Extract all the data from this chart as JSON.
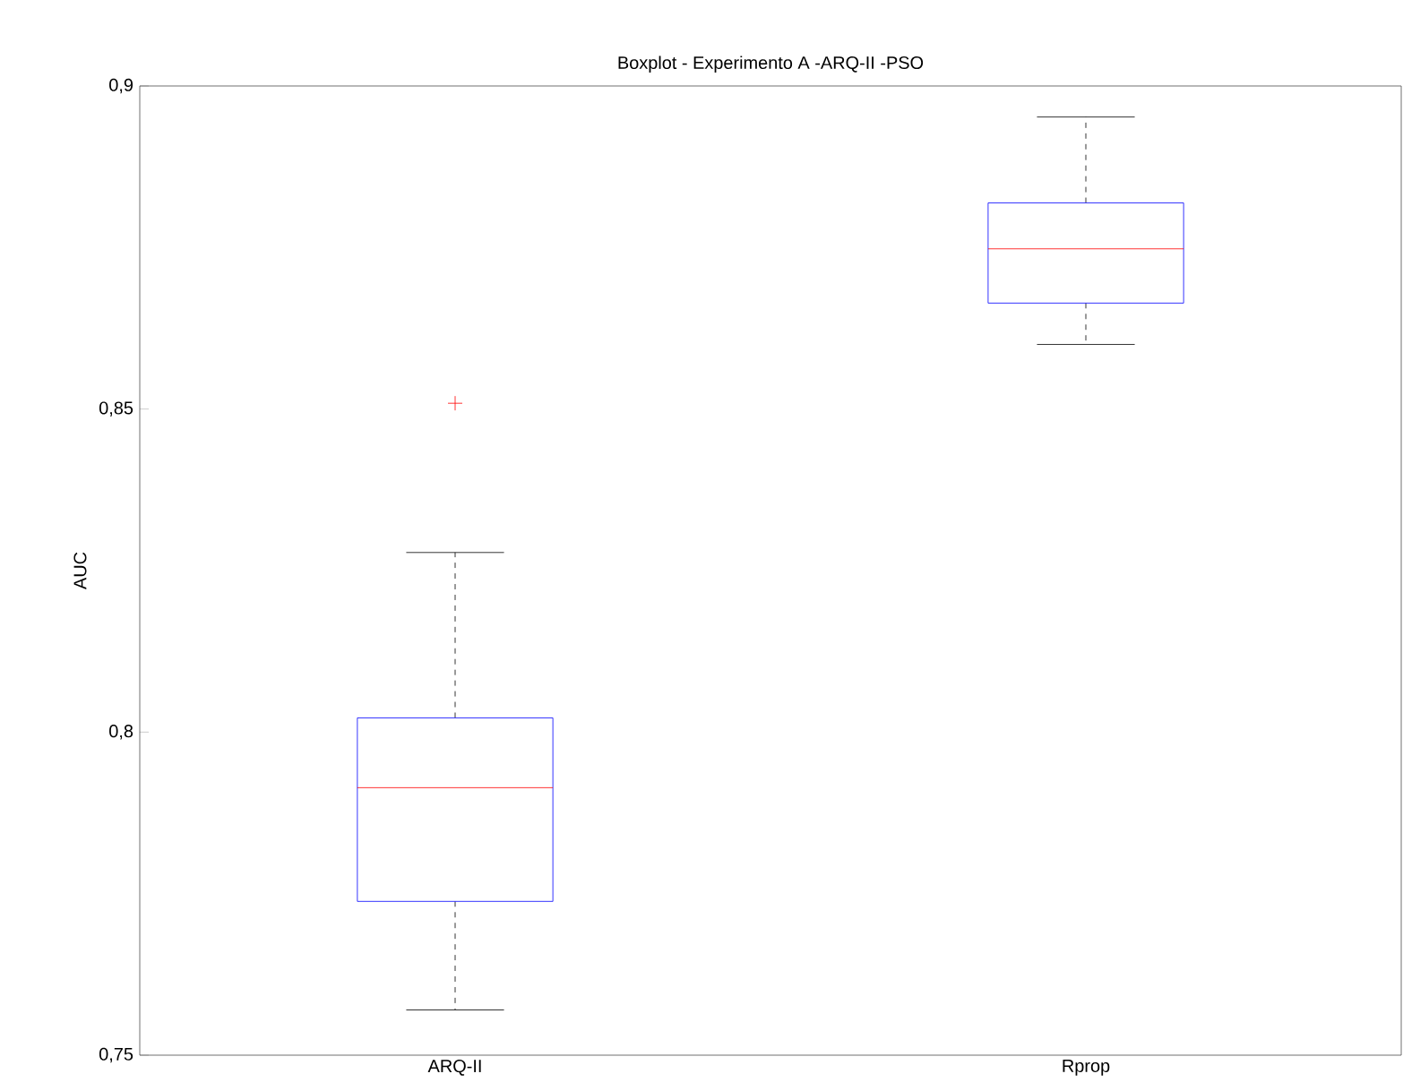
{
  "chart_data": {
    "type": "box",
    "title": "Boxplot - Experimento A -ARQ-II -PSO",
    "ylabel": "AUC",
    "categories": [
      "ARQ-II",
      "Rprop"
    ],
    "color": "#0000ff",
    "boxes": [
      {
        "low": 0.757,
        "q1": 0.7738,
        "median": 0.7914,
        "q3": 0.8022,
        "high": 0.8278,
        "outliers": [
          0.8509
        ]
      },
      {
        "low": 0.86,
        "q1": 0.8664,
        "median": 0.8748,
        "q3": 0.8819,
        "high": 0.8952
      }
    ],
    "ylim": [
      0.75,
      0.9
    ],
    "yticks": [
      {
        "value": 0.75,
        "label": "0,75"
      },
      {
        "value": 0.8,
        "label": "0,8"
      },
      {
        "value": 0.85,
        "label": "0,85"
      },
      {
        "value": 0.9,
        "label": "0,9"
      }
    ]
  }
}
